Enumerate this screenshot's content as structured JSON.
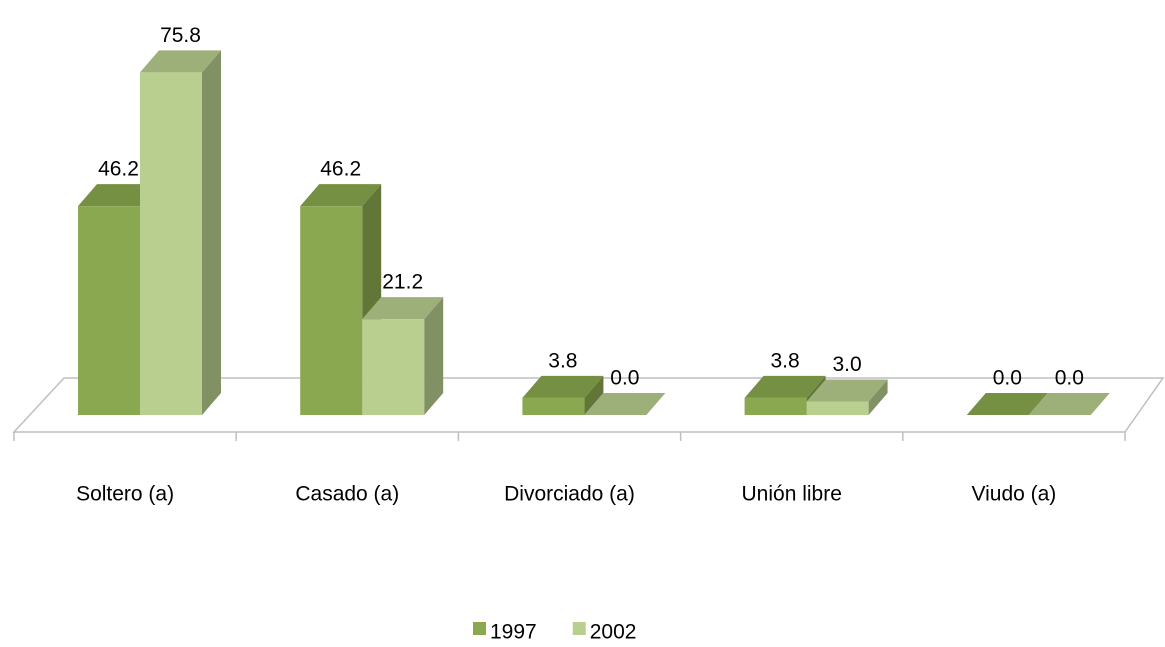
{
  "chart_data": {
    "type": "bar3d",
    "categories": [
      "Soltero (a)",
      "Casado (a)",
      "Divorciado (a)",
      "Unión libre",
      "Viudo (a)"
    ],
    "series": [
      {
        "name": "1997",
        "color": "#8aa84f",
        "values": [
          46.2,
          46.2,
          3.8,
          3.8,
          0.0
        ],
        "value_labels": [
          "46.2",
          "46.2",
          "3.8",
          "3.8",
          "0.0"
        ]
      },
      {
        "name": "2002",
        "color": "#b9cf8f",
        "values": [
          75.8,
          21.2,
          0.0,
          3.0,
          0.0
        ],
        "value_labels": [
          "75.8",
          "21.2",
          "0.0",
          "3.0",
          "0.0"
        ]
      }
    ],
    "legend": "bottom"
  }
}
